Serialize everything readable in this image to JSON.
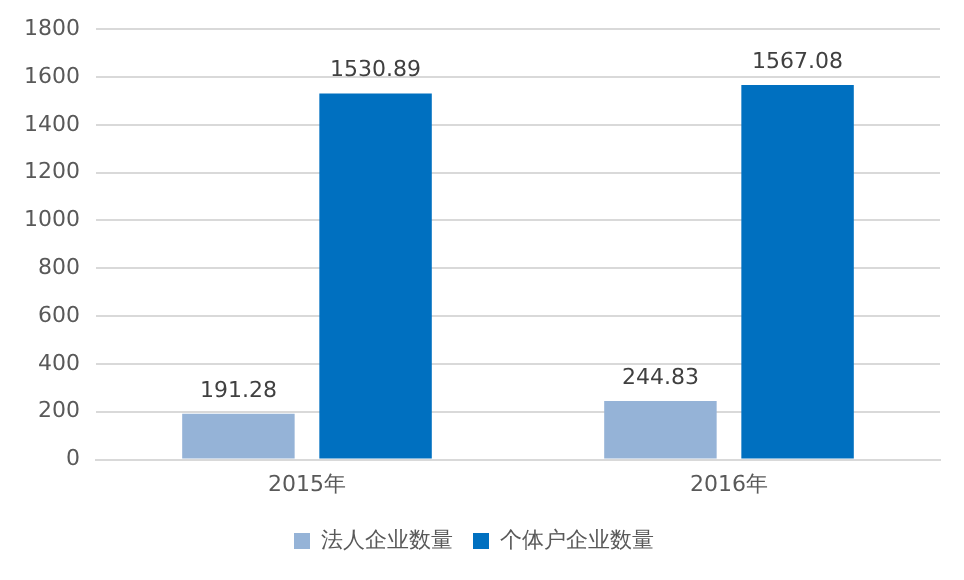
{
  "chart_data": {
    "type": "bar",
    "categories": [
      "2015年",
      "2016年"
    ],
    "series": [
      {
        "name": "法人企业数量",
        "color": "#95b3d7",
        "values": [
          191.28,
          244.83
        ]
      },
      {
        "name": "个体户企业数量",
        "color": "#0070c0",
        "values": [
          1530.89,
          1567.08
        ]
      }
    ],
    "ylim": [
      0,
      1800
    ],
    "yticks": [
      0,
      200,
      400,
      600,
      800,
      1000,
      1200,
      1400,
      1600,
      1800
    ],
    "grid": "y",
    "legend": "bottom",
    "data_labels": true
  }
}
